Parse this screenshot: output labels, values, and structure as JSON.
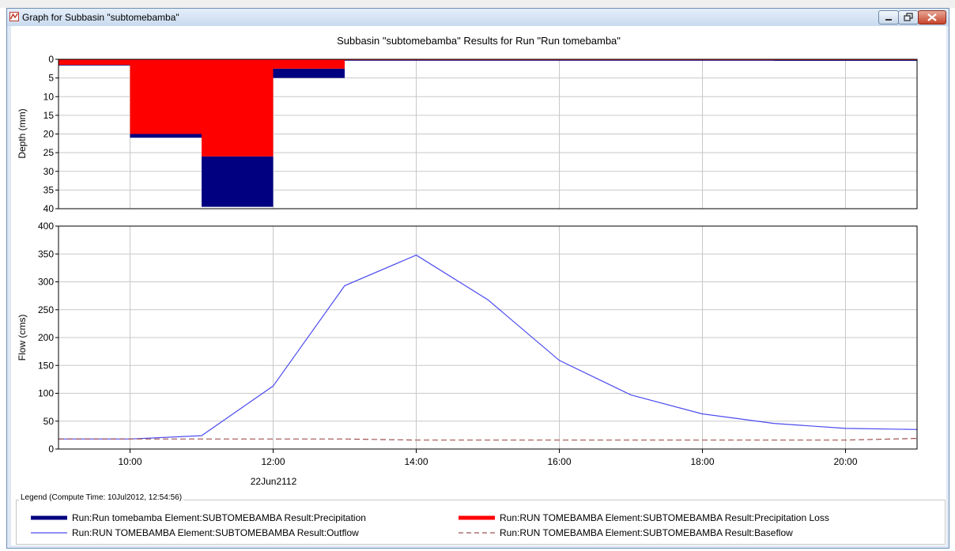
{
  "window": {
    "title": "Graph for Subbasin \"subtomebamba\"",
    "icon": "graph-window-icon",
    "buttons": [
      "minimize-icon",
      "restore-icon",
      "close-icon"
    ]
  },
  "plot": {
    "title": "Subbasin \"subtomebamba\" Results for Run \"Run tomebamba\""
  },
  "chart_data": [
    {
      "type": "bar",
      "name": "depth-panel",
      "ylabel": "Depth (mm)",
      "ylim": [
        0,
        40
      ],
      "y_inverted": true,
      "yticks": [
        0,
        5,
        10,
        15,
        20,
        25,
        30,
        35,
        40
      ],
      "x_range": [
        "09:00",
        "21:00"
      ],
      "grid": true,
      "bars": [
        {
          "start": "09:00",
          "end": "10:00",
          "loss": 1.5,
          "precipitation": 1.5
        },
        {
          "start": "10:00",
          "end": "11:00",
          "loss": 20.0,
          "precipitation": 21.0
        },
        {
          "start": "11:00",
          "end": "12:00",
          "loss": 26.0,
          "precipitation": 39.5
        },
        {
          "start": "12:00",
          "end": "13:00",
          "loss": 2.5,
          "precipitation": 5.0
        },
        {
          "start": "13:00",
          "end": "19:00",
          "loss": 0.2,
          "precipitation": 0.2
        },
        {
          "start": "19:00",
          "end": "21:00",
          "loss": 0.2,
          "precipitation": 0.4
        }
      ]
    },
    {
      "type": "line",
      "name": "flow-panel",
      "ylabel": "Flow (cms)",
      "ylim": [
        0,
        400
      ],
      "yticks": [
        0,
        50,
        100,
        150,
        200,
        250,
        300,
        350,
        400
      ],
      "x_range": [
        "09:00",
        "21:00"
      ],
      "xticks": [
        "10:00",
        "12:00",
        "14:00",
        "16:00",
        "18:00",
        "20:00"
      ],
      "xlabel_date": "22Jun2112",
      "grid": true,
      "series": [
        {
          "name": "Run:RUN TOMEBAMBA Element:SUBTOMEBAMBA Result:Outflow",
          "color": "#4b4bf0",
          "x": [
            "09:00",
            "10:00",
            "11:00",
            "12:00",
            "13:00",
            "14:00",
            "15:00",
            "16:00",
            "17:00",
            "18:00",
            "19:00",
            "20:00",
            "21:00"
          ],
          "values": [
            18,
            18,
            24,
            113,
            293,
            348,
            268,
            159,
            97,
            63,
            46,
            37,
            35
          ]
        },
        {
          "name": "Run:RUN TOMEBAMBA Element:SUBTOMEBAMBA Result:Baseflow",
          "color": "#a05050",
          "dashed": true,
          "x": [
            "09:00",
            "10:00",
            "11:00",
            "12:00",
            "13:00",
            "14:00",
            "15:00",
            "16:00",
            "17:00",
            "18:00",
            "19:00",
            "20:00",
            "21:00"
          ],
          "values": [
            18,
            18,
            18,
            18,
            18,
            16,
            16,
            16,
            16,
            16,
            16,
            16,
            19
          ]
        }
      ]
    }
  ],
  "legend": {
    "caption": "Legend (Compute Time: 10Jul2012, 12:54:56)",
    "items": [
      {
        "label": "Run:Run tomebamba Element:SUBTOMEBAMBA Result:Precipitation",
        "color": "#000080",
        "style": "thick"
      },
      {
        "label": "Run:RUN TOMEBAMBA Element:SUBTOMEBAMBA Result:Precipitation Loss",
        "color": "#ff0000",
        "style": "thick"
      },
      {
        "label": "Run:RUN TOMEBAMBA Element:SUBTOMEBAMBA Result:Outflow",
        "color": "#4b4bf0",
        "style": "thin"
      },
      {
        "label": "Run:RUN TOMEBAMBA Element:SUBTOMEBAMBA Result:Baseflow",
        "color": "#a05050",
        "style": "dashed"
      }
    ]
  }
}
